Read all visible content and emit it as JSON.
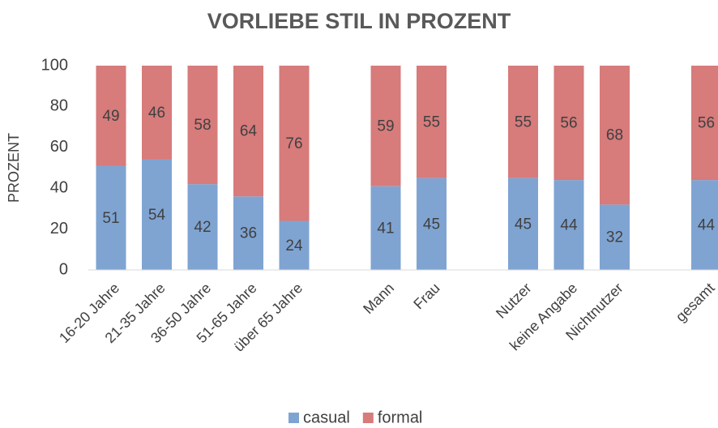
{
  "chart_data": {
    "type": "bar",
    "stacked": true,
    "title": "VORLIEBE STIL IN PROZENT",
    "ylabel": "PROZENT",
    "categories": [
      "16-20 Jahre",
      "21-35 Jahre",
      "36-50 Jahre",
      "51-65 Jahre",
      "über 65 Jahre",
      null,
      "Mann",
      "Frau",
      null,
      "Nutzer",
      "keine Angabe",
      "Nichtnutzer",
      null,
      "gesamt"
    ],
    "series": [
      {
        "name": "casual",
        "color": "#7fa4d2",
        "values": [
          51,
          54,
          42,
          36,
          24,
          null,
          41,
          45,
          null,
          45,
          44,
          32,
          null,
          44
        ]
      },
      {
        "name": "formal",
        "color": "#d77b7b",
        "values": [
          49,
          46,
          58,
          64,
          76,
          null,
          59,
          55,
          null,
          55,
          56,
          68,
          null,
          56
        ]
      }
    ],
    "ylim": [
      0,
      100
    ],
    "yticks": [
      0,
      20,
      40,
      60,
      80,
      100
    ],
    "grid": false,
    "legend": "bottom"
  }
}
